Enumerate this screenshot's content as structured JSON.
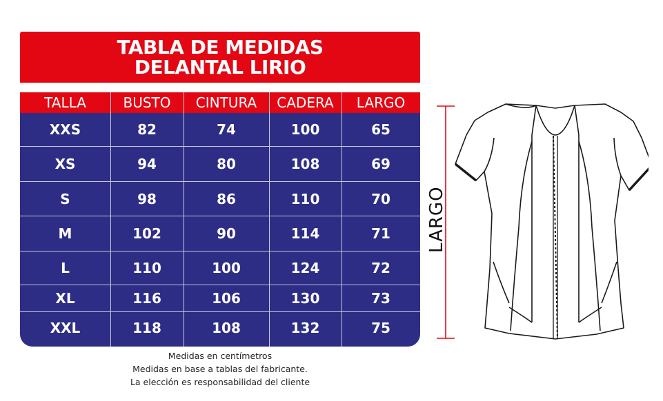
{
  "title": {
    "line1": "TABLA DE MEDIDAS",
    "line2": "DELANTAL LIRIO"
  },
  "table": {
    "headers": [
      "TALLA",
      "BUSTO",
      "CINTURA",
      "CADERA",
      "LARGO"
    ],
    "rows": [
      [
        "XXS",
        "82",
        "74",
        "100",
        "65"
      ],
      [
        "XS",
        "94",
        "80",
        "108",
        "69"
      ],
      [
        "S",
        "98",
        "86",
        "110",
        "70"
      ],
      [
        "M",
        "102",
        "90",
        "114",
        "71"
      ],
      [
        "L",
        "110",
        "100",
        "124",
        "72"
      ],
      [
        "XL",
        "116",
        "106",
        "130",
        "73"
      ],
      [
        "XXL",
        "118",
        "108",
        "132",
        "75"
      ]
    ]
  },
  "notes": [
    "Medidas en centímetros",
    "Medidas en base a tablas del fabricante.",
    "La elección es responsabilidad del cliente"
  ],
  "diagram": {
    "measure_label": "LARGO"
  },
  "colors": {
    "red": "#e30613",
    "navy": "#2e2d86",
    "divider": "#c8c8dc",
    "white": "#ffffff",
    "measure_line": "#e30613"
  }
}
